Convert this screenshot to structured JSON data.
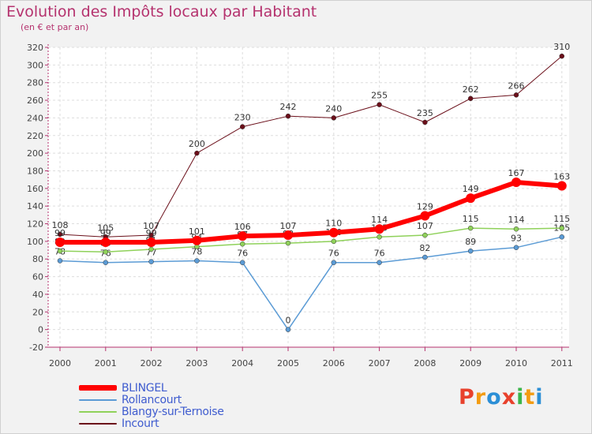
{
  "header": {
    "title": "Evolution des Impôts locaux par Habitant",
    "subtitle": "(en € et par an)"
  },
  "colors": {
    "title": "#b5326e",
    "axis": "#b5326e",
    "legend_text": "#3f5ccf"
  },
  "logo": {
    "letters": [
      "P",
      "r",
      "o",
      "x",
      "i",
      "t",
      "i"
    ],
    "colors": [
      "#e8412c",
      "#f39c12",
      "#2c8fd6",
      "#e8412c",
      "#3bb54a",
      "#f39c12",
      "#2c8fd6"
    ]
  },
  "chart_data": {
    "type": "line",
    "x": [
      "2000",
      "2001",
      "2002",
      "2003",
      "2004",
      "2005",
      "2006",
      "2007",
      "2008",
      "2009",
      "2010",
      "2011"
    ],
    "ylim": [
      -20,
      320
    ],
    "yticks": [
      "-20",
      "0",
      "20",
      "40",
      "60",
      "80",
      "100",
      "120",
      "140",
      "160",
      "180",
      "200",
      "220",
      "240",
      "260",
      "280",
      "300",
      "320"
    ],
    "grid": true,
    "series": [
      {
        "name": "Incourt",
        "color": "#6b0f1a",
        "width": 1,
        "values": [
          108,
          105,
          107,
          200,
          230,
          242,
          240,
          255,
          235,
          262,
          266,
          310
        ],
        "labels": [
          "108",
          "105",
          "107",
          "200",
          "230",
          "242",
          "240",
          "255",
          "235",
          "262",
          "266",
          "310"
        ]
      },
      {
        "name": "Rollancourt",
        "color": "#5b9bd5",
        "width": 1.5,
        "values": [
          78,
          76,
          77,
          78,
          76,
          0,
          76,
          76,
          82,
          89,
          93,
          105
        ],
        "labels": [
          "78",
          "76",
          "77",
          "78",
          "76",
          "0",
          "76",
          "76",
          "82",
          "89",
          "93",
          "105"
        ]
      },
      {
        "name": "Blangy-sur-Ternoise",
        "color": "#8fd15a",
        "width": 1.5,
        "values": [
          89,
          88,
          91,
          94,
          97,
          98,
          100,
          105,
          107,
          115,
          114,
          115
        ],
        "labels": [
          "89",
          "88",
          "91",
          "94",
          "97",
          "98",
          "100",
          "105",
          "107",
          "115",
          "114",
          "115"
        ]
      },
      {
        "name": "BLINGEL",
        "color": "#ff0000",
        "width": 6,
        "values": [
          99,
          99,
          99,
          101,
          106,
          107,
          110,
          114,
          129,
          149,
          167,
          163
        ],
        "labels": [
          "99",
          "99",
          "99",
          "101",
          "106",
          "107",
          "110",
          "114",
          "129",
          "149",
          "167",
          "163"
        ]
      }
    ],
    "legend": [
      "BLINGEL",
      "Rollancourt",
      "Blangy-sur-Ternoise",
      "Incourt"
    ]
  }
}
